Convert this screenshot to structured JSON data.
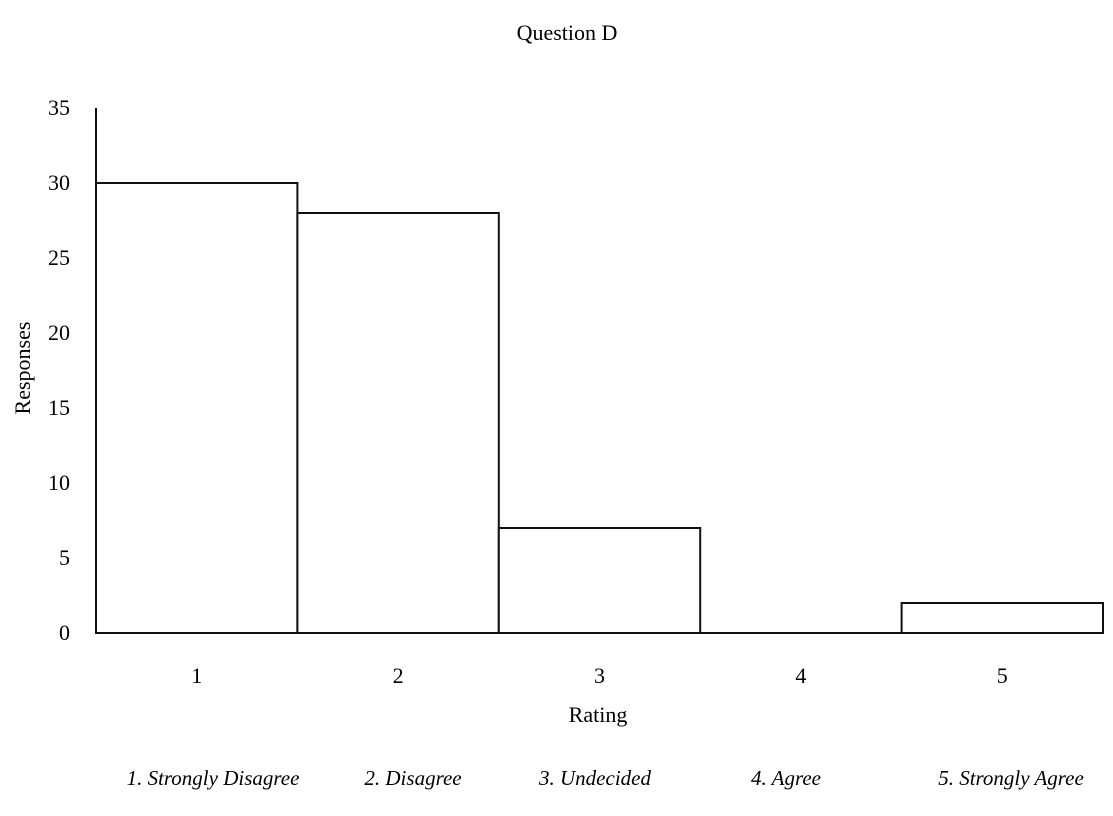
{
  "chart_data": {
    "type": "bar",
    "title": "Question D",
    "xlabel": "Rating",
    "ylabel": "Responses",
    "categories": [
      "1",
      "2",
      "3",
      "4",
      "5"
    ],
    "values": [
      30,
      28,
      7,
      0,
      2
    ],
    "ylim": [
      0,
      35
    ],
    "yticks": [
      "0",
      "5",
      "10",
      "15",
      "20",
      "25",
      "30",
      "35"
    ],
    "grid": false,
    "legend_items": [
      "1. Strongly Disagree",
      "2. Disagree",
      "3. Undecided",
      "4. Agree",
      "5. Strongly Agree"
    ],
    "colors": {
      "bar_fill": "#ffffff",
      "bar_stroke": "#111111"
    }
  }
}
